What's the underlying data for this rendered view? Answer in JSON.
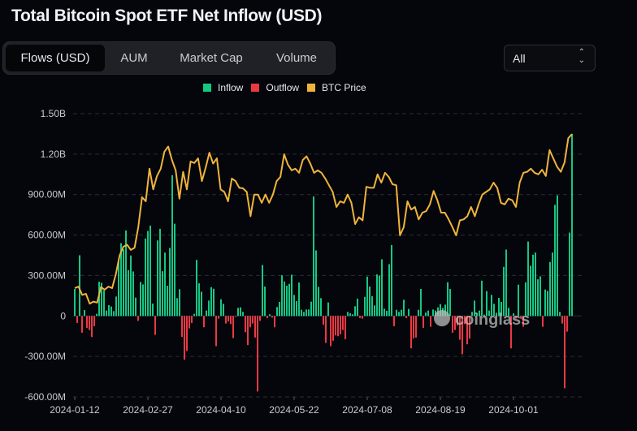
{
  "header": {
    "title": "Total Bitcoin Spot ETF Net Inflow (USD)"
  },
  "tabs": [
    {
      "label": "Flows (USD)",
      "active": true
    },
    {
      "label": "AUM",
      "active": false
    },
    {
      "label": "Market Cap",
      "active": false
    },
    {
      "label": "Volume",
      "active": false
    }
  ],
  "range_select": {
    "value": "All",
    "icon": "up-down-chevron-icon"
  },
  "watermark": "coinglass",
  "colors": {
    "inflow": "#16c784",
    "outflow": "#ea3943",
    "btc_price": "#f0b43c",
    "background": "#04060b",
    "grid": "#2a2d34"
  },
  "chart_data": {
    "type": "bar",
    "legend": [
      {
        "label": "Inflow",
        "color": "#16c784"
      },
      {
        "label": "Outflow",
        "color": "#ea3943"
      },
      {
        "label": "BTC Price",
        "color": "#f0b43c"
      }
    ],
    "legend_placement": "top-center",
    "grid": true,
    "ylim": [
      -600000000,
      1500000000
    ],
    "y_ticks": [
      "1.50B",
      "1.20B",
      "900.00M",
      "600.00M",
      "300.00M",
      "0",
      "-300.00M",
      "-600.00M"
    ],
    "x_ticks": [
      "2024-01-12",
      "2024-02-27",
      "2024-04-10",
      "2024-05-22",
      "2024-07-08",
      "2024-08-19",
      "2024-10-01"
    ],
    "net_flow_musd": [
      200,
      -52,
      450,
      -124,
      44,
      -88,
      -104,
      -156,
      -76,
      16,
      254,
      246,
      190,
      40,
      80,
      70,
      36,
      144,
      404,
      540,
      494,
      634,
      340,
      448,
      330,
      136,
      -36,
      252,
      234,
      574,
      630,
      670,
      92,
      -140,
      560,
      646,
      332,
      470,
      224,
      504,
      1044,
      684,
      132,
      198,
      -156,
      -324,
      -260,
      -92,
      -52,
      16,
      416,
      242,
      180,
      -84,
      40,
      114,
      214,
      202,
      -224,
      -20,
      124,
      90,
      -56,
      -40,
      -60,
      -164,
      -4,
      60,
      64,
      30,
      -120,
      -216,
      -84,
      -56,
      -160,
      -560,
      -36,
      378,
      218,
      -16,
      12,
      -12,
      -84,
      66,
      104,
      302,
      256,
      224,
      238,
      306,
      156,
      110,
      248,
      46,
      30,
      48,
      48,
      106,
      886,
      486,
      216,
      132,
      -64,
      -200,
      100,
      -224,
      -184,
      -144,
      -150,
      -136,
      -104,
      -172,
      30,
      20,
      12,
      72,
      128,
      -16,
      -20,
      142,
      292,
      218,
      146,
      78,
      308,
      300,
      420,
      54,
      38,
      384,
      526,
      -76,
      46,
      30,
      46,
      120,
      -16,
      52,
      -240,
      -166,
      -160,
      46,
      200,
      -88,
      26,
      40,
      -80,
      48,
      40,
      64,
      88,
      60,
      84,
      250,
      200,
      -124,
      -104,
      -70,
      -176,
      -284,
      -60,
      -210,
      -168,
      30,
      114,
      20,
      40,
      262,
      10,
      184,
      40,
      156,
      90,
      24,
      134,
      104,
      364,
      492,
      60,
      -240,
      20,
      -20,
      232,
      -20,
      -80,
      250,
      552,
      372,
      454,
      470,
      272,
      294,
      -80,
      196,
      186,
      400,
      470,
      824,
      894,
      30,
      -56,
      -536,
      -116,
      618,
      1350
    ],
    "btc_price_usd": [
      46000,
      46300,
      44700,
      44900,
      43000,
      43400,
      43200,
      46200,
      45700,
      46300,
      46000,
      48700,
      52300,
      54000,
      54400,
      53400,
      53800,
      57800,
      63600,
      62800,
      69100,
      65100,
      67700,
      69100,
      72400,
      73400,
      70800,
      68800,
      63300,
      68500,
      65100,
      70500,
      70200,
      71100,
      66700,
      69300,
      72200,
      70100,
      71100,
      65100,
      64600,
      62800,
      67200,
      66700,
      65400,
      65300,
      64600,
      59900,
      64100,
      64100,
      62500,
      64100,
      62500,
      64100,
      66700,
      67500,
      71900,
      69900,
      68800,
      69100,
      68300,
      70800,
      71500,
      70100,
      68300,
      68800,
      68300,
      67200,
      65900,
      64600,
      61700,
      62800,
      62500,
      64100,
      62500,
      58400,
      59700,
      59100,
      65600,
      65400,
      65400,
      68000,
      66400,
      68300,
      67500,
      66100,
      65900,
      56200,
      57800,
      62800,
      61200,
      61700,
      59300,
      60600,
      60900,
      62200,
      64800,
      63000,
      60600,
      60600,
      59300,
      57800,
      56200,
      59100,
      59300,
      59900,
      61700,
      59900,
      62200,
      64100,
      64600,
      65100,
      66400,
      65400,
      62500,
      62200,
      63300,
      63000,
      61700,
      66400,
      68300,
      68500,
      69100,
      68300,
      68000,
      68900,
      67700,
      72700,
      71100,
      69500,
      68500,
      70300,
      75000,
      75800
    ]
  }
}
